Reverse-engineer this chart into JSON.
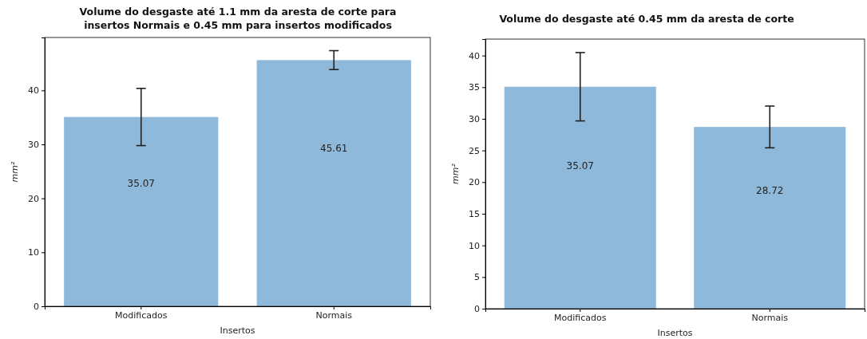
{
  "chart_data": [
    {
      "type": "bar",
      "title": "Volume do desgaste até 1.1 mm da aresta de corte para\ninsertos Normais e 0.45 mm para insertos modificados",
      "xlabel": "Insertos",
      "ylabel": "mm²",
      "categories": [
        "Modificados",
        "Normais"
      ],
      "values": [
        35.07,
        45.61
      ],
      "errors": [
        5.3,
        1.75
      ],
      "color": "#8fb9da",
      "ylim": [
        0,
        49.8
      ],
      "yticks": [
        0,
        10,
        20,
        30,
        40
      ],
      "data_labels": true
    },
    {
      "type": "bar",
      "title": "Volume do desgaste até 0.45 mm da aresta de corte",
      "xlabel": "Insertos",
      "ylabel": "mm²",
      "categories": [
        "Modificados",
        "Normais"
      ],
      "values": [
        35.07,
        28.72
      ],
      "errors": [
        5.4,
        3.3
      ],
      "color": "#8fb9da",
      "ylim": [
        0,
        42.6
      ],
      "yticks": [
        0,
        5,
        10,
        15,
        20,
        25,
        30,
        35,
        40
      ],
      "data_labels": true
    }
  ]
}
